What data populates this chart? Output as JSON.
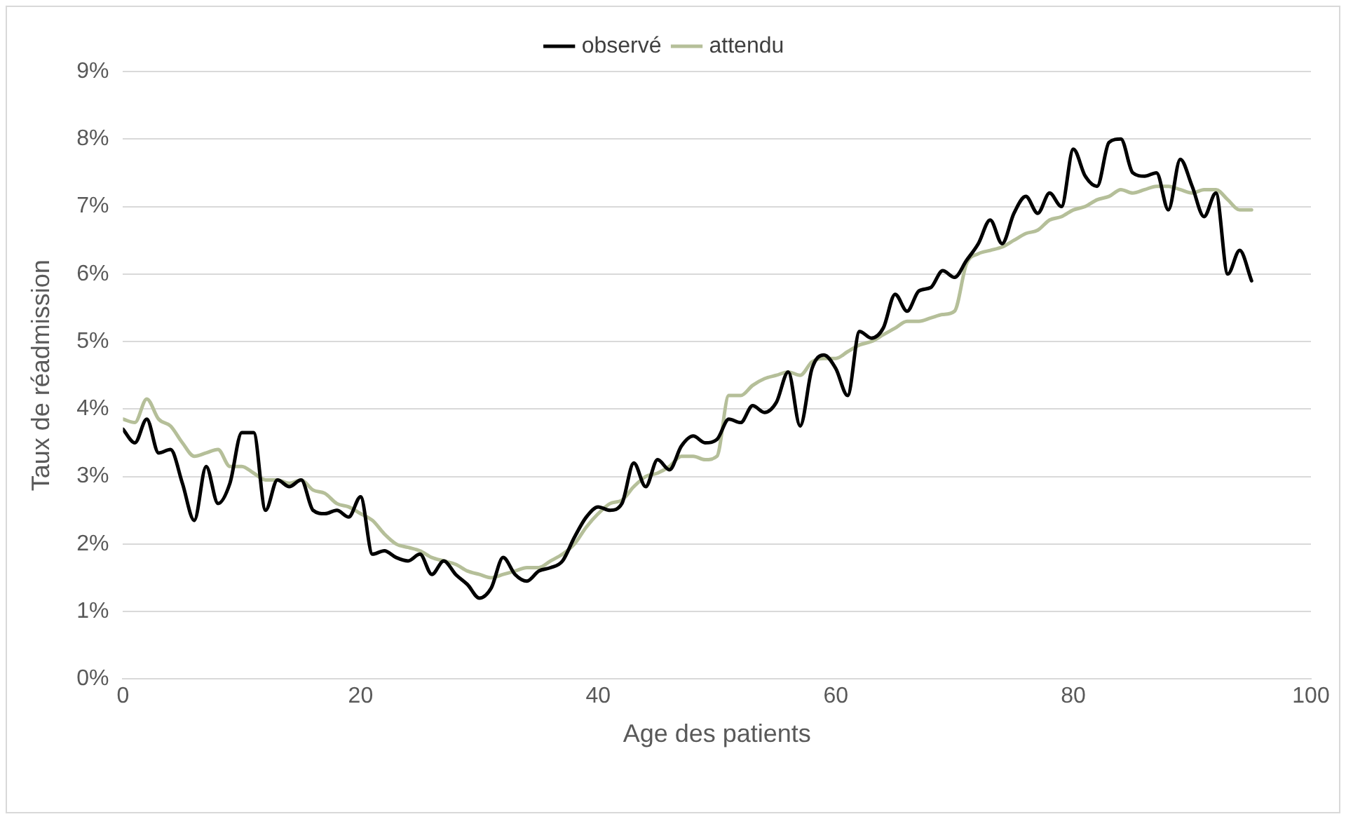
{
  "chart_data": {
    "type": "line",
    "xlabel": "Age des patients",
    "ylabel": "Taux de réadmission",
    "x": [
      0,
      1,
      2,
      3,
      4,
      5,
      6,
      7,
      8,
      9,
      10,
      11,
      12,
      13,
      14,
      15,
      16,
      17,
      18,
      19,
      20,
      21,
      22,
      23,
      24,
      25,
      26,
      27,
      28,
      29,
      30,
      31,
      32,
      33,
      34,
      35,
      36,
      37,
      38,
      39,
      40,
      41,
      42,
      43,
      44,
      45,
      46,
      47,
      48,
      49,
      50,
      51,
      52,
      53,
      54,
      55,
      56,
      57,
      58,
      59,
      60,
      61,
      62,
      63,
      64,
      65,
      66,
      67,
      68,
      69,
      70,
      71,
      72,
      73,
      74,
      75,
      76,
      77,
      78,
      79,
      80,
      81,
      82,
      83,
      84,
      85,
      86,
      87,
      88,
      89,
      90,
      91,
      92,
      93,
      94,
      95
    ],
    "series": [
      {
        "name": "observé",
        "color": "#000000",
        "values": [
          3.7,
          3.5,
          3.85,
          3.35,
          3.4,
          2.9,
          2.35,
          3.15,
          2.6,
          2.9,
          3.65,
          3.65,
          2.5,
          2.95,
          2.85,
          2.95,
          2.5,
          2.45,
          2.5,
          2.4,
          2.7,
          1.85,
          1.9,
          1.8,
          1.75,
          1.85,
          1.55,
          1.75,
          1.55,
          1.4,
          1.2,
          1.35,
          1.8,
          1.55,
          1.45,
          1.6,
          1.65,
          1.75,
          2.1,
          2.4,
          2.55,
          2.5,
          2.6,
          3.2,
          2.85,
          3.25,
          3.1,
          3.45,
          3.6,
          3.5,
          3.55,
          3.85,
          3.8,
          4.05,
          3.95,
          4.1,
          4.55,
          3.75,
          4.6,
          4.8,
          4.6,
          4.2,
          5.15,
          5.05,
          5.2,
          5.7,
          5.45,
          5.75,
          5.8,
          6.05,
          5.95,
          6.2,
          6.45,
          6.8,
          6.45,
          6.9,
          7.15,
          6.9,
          7.2,
          7.0,
          7.85,
          7.45,
          7.3,
          7.95,
          8.0,
          7.5,
          7.45,
          7.5,
          6.95,
          7.7,
          7.3,
          6.85,
          7.2,
          6.0,
          6.35,
          5.9
        ]
      },
      {
        "name": "attendu",
        "color": "#b5bf99",
        "values": [
          3.85,
          3.8,
          4.15,
          3.85,
          3.75,
          3.5,
          3.3,
          3.35,
          3.4,
          3.15,
          3.15,
          3.05,
          2.95,
          2.95,
          2.9,
          2.95,
          2.8,
          2.75,
          2.6,
          2.55,
          2.45,
          2.35,
          2.15,
          2.0,
          1.95,
          1.9,
          1.8,
          1.75,
          1.7,
          1.6,
          1.55,
          1.5,
          1.55,
          1.6,
          1.65,
          1.65,
          1.75,
          1.85,
          2.0,
          2.25,
          2.45,
          2.6,
          2.65,
          2.85,
          3.0,
          3.05,
          3.15,
          3.3,
          3.3,
          3.25,
          3.3,
          4.2,
          4.2,
          4.35,
          4.45,
          4.5,
          4.55,
          4.5,
          4.7,
          4.75,
          4.75,
          4.85,
          4.95,
          5.0,
          5.1,
          5.2,
          5.3,
          5.3,
          5.35,
          5.4,
          5.45,
          6.15,
          6.3,
          6.35,
          6.4,
          6.5,
          6.6,
          6.65,
          6.8,
          6.85,
          6.95,
          7.0,
          7.1,
          7.15,
          7.25,
          7.2,
          7.25,
          7.3,
          7.3,
          7.25,
          7.2,
          7.25,
          7.25,
          7.1,
          6.95,
          6.95
        ]
      }
    ],
    "xlim": [
      0,
      100
    ],
    "xticks": [
      0,
      20,
      40,
      60,
      80,
      100
    ],
    "ylim": [
      0,
      9
    ],
    "yticks": [
      {
        "value": 0,
        "label": "0%"
      },
      {
        "value": 1,
        "label": "1%"
      },
      {
        "value": 2,
        "label": "2%"
      },
      {
        "value": 3,
        "label": "3%"
      },
      {
        "value": 4,
        "label": "4%"
      },
      {
        "value": 5,
        "label": "5%"
      },
      {
        "value": 6,
        "label": "6%"
      },
      {
        "value": 7,
        "label": "7%"
      },
      {
        "value": 8,
        "label": "8%"
      },
      {
        "value": 9,
        "label": "9%"
      }
    ],
    "grid": "y",
    "legend": "top",
    "marker": "none",
    "line_style": "solid"
  }
}
